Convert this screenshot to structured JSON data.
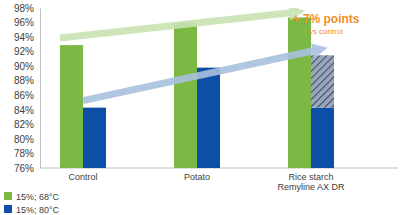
{
  "chart_data": {
    "type": "bar",
    "categories": [
      "Control",
      "Potato",
      "Rice starch\nRemyline AX DR"
    ],
    "series": [
      {
        "name": "15%; 68°C",
        "color": "#7cb844",
        "values": [
          92.9,
          96.0,
          96.7
        ]
      },
      {
        "name": "15%; 80°C",
        "color": "#0d4ea6",
        "values": [
          84.3,
          89.8,
          84.3
        ],
        "extension": [
          null,
          null,
          7.2
        ]
      }
    ],
    "ylim": [
      76,
      98
    ],
    "yticks": [
      {
        "value": 76,
        "label": "76%"
      },
      {
        "value": 78,
        "label": "78%"
      },
      {
        "value": 80,
        "label": "80%"
      },
      {
        "value": 82,
        "label": "82%"
      },
      {
        "value": 84,
        "label": "84%"
      },
      {
        "value": 86,
        "label": "86%"
      },
      {
        "value": 88,
        "label": "88%"
      },
      {
        "value": 90,
        "label": "90%"
      },
      {
        "value": 92,
        "label": "92%"
      },
      {
        "value": 94,
        "label": "94%"
      },
      {
        "value": 96,
        "label": "96%"
      },
      {
        "value": 98,
        "label": "98%"
      }
    ],
    "grid": false,
    "legend": "bottom",
    "annotations": [
      "+ 7% points",
      "vs control"
    ]
  }
}
